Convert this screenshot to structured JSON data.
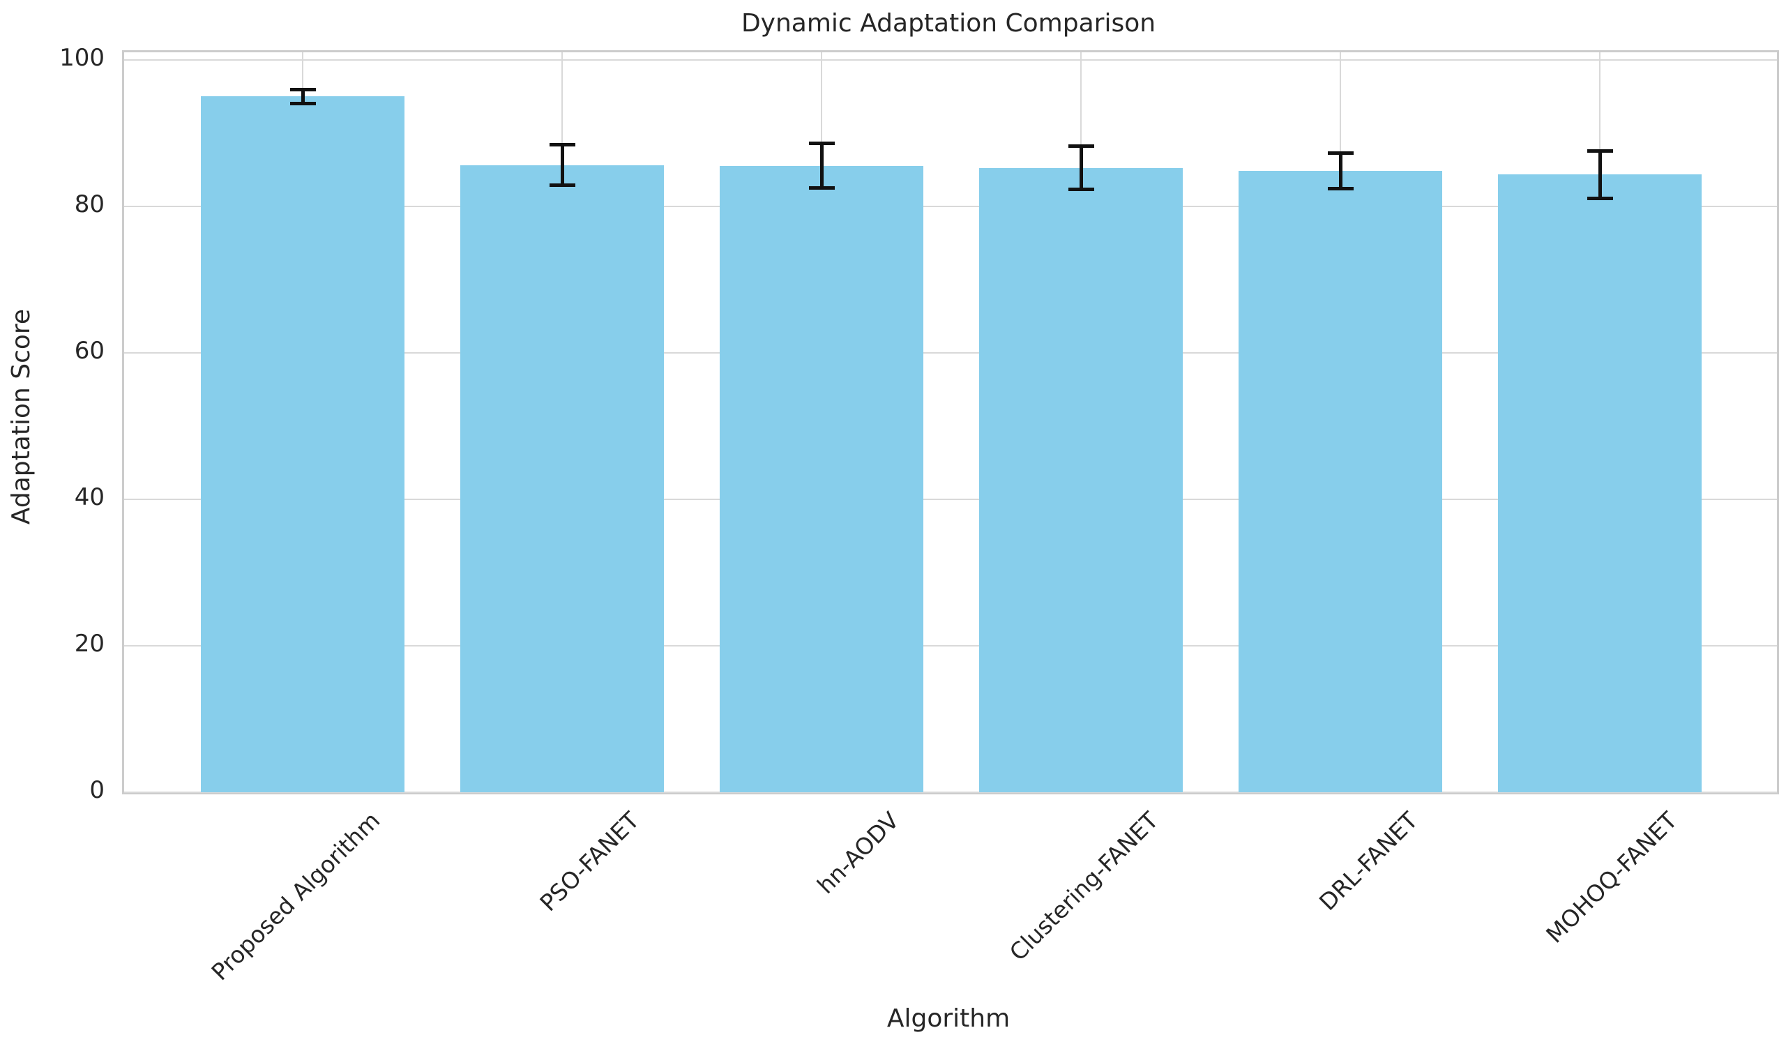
{
  "chart_data": {
    "type": "bar",
    "title": "Dynamic Adaptation Comparison",
    "xlabel": "Algorithm",
    "ylabel": "Adaptation Score",
    "categories": [
      "Proposed Algorithm",
      "PSO-FANET",
      "hn-AODV",
      "Clustering-FANET",
      "DRL-FANET",
      "MOHOQ-FANET"
    ],
    "values": [
      95.0,
      85.6,
      85.5,
      85.2,
      84.8,
      84.3
    ],
    "errors": [
      1.0,
      2.8,
      3.1,
      3.0,
      2.5,
      3.3
    ],
    "yticks": [
      0,
      20,
      40,
      60,
      80,
      100
    ],
    "ylim": [
      0,
      101
    ],
    "grid": true,
    "legend": "none",
    "colors": {
      "bar": "#87CEEB",
      "error_bar": "#111111",
      "grid_line": "#d9d9d9",
      "spine": "#cccccc",
      "text": "#262626"
    }
  }
}
